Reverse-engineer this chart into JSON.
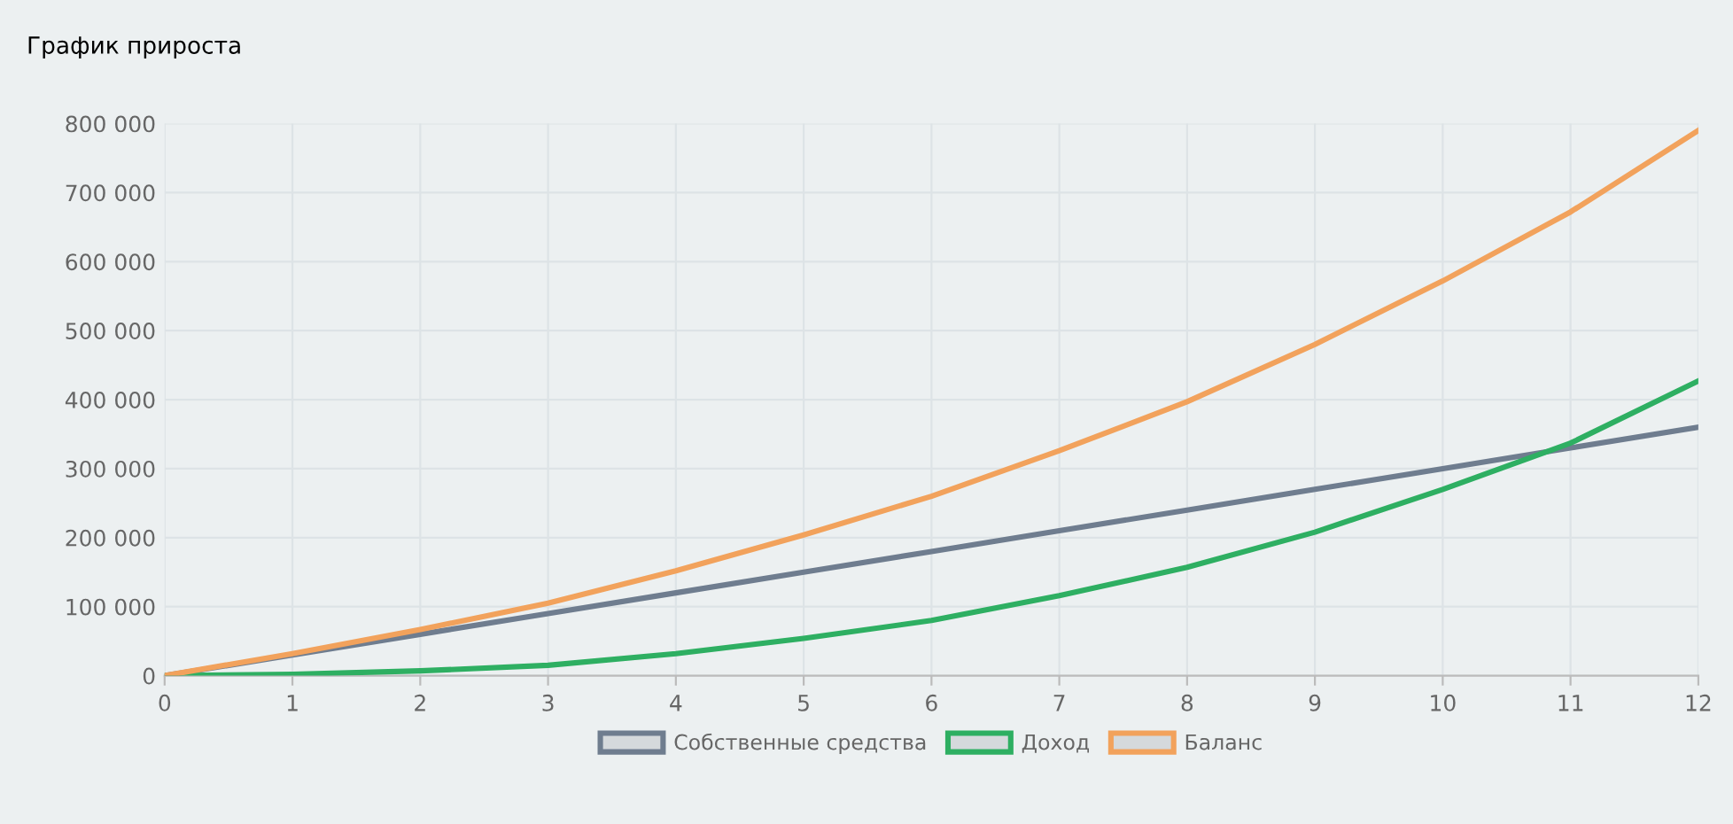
{
  "chart_data": {
    "type": "line",
    "title": "График прироста",
    "x": [
      0,
      1,
      2,
      3,
      4,
      5,
      6,
      7,
      8,
      9,
      10,
      11,
      12
    ],
    "series": [
      {
        "name": "Собственные средства",
        "color": "#6f7d8f",
        "values": [
          0,
          30000,
          60000,
          90000,
          120000,
          150000,
          180000,
          210000,
          240000,
          270000,
          300000,
          330000,
          360000
        ]
      },
      {
        "name": "Доход",
        "color": "#2eaf62",
        "values": [
          0,
          2000,
          7000,
          15000,
          32000,
          54000,
          80000,
          116000,
          157000,
          208000,
          270000,
          337000,
          427000
        ]
      },
      {
        "name": "Баланс",
        "color": "#f2a25c",
        "values": [
          0,
          32000,
          67000,
          105000,
          152000,
          204000,
          260000,
          326000,
          397000,
          480000,
          572000,
          672000,
          790000
        ]
      }
    ],
    "xlim": [
      0,
      12
    ],
    "xticks": [
      0,
      1,
      2,
      3,
      4,
      5,
      6,
      7,
      8,
      9,
      10,
      11,
      12
    ],
    "ylim": [
      0,
      800000
    ],
    "yticks": [
      {
        "value": 0,
        "label": "0"
      },
      {
        "value": 100000,
        "label": "100 000"
      },
      {
        "value": 200000,
        "label": "200 000"
      },
      {
        "value": 300000,
        "label": "300 000"
      },
      {
        "value": 400000,
        "label": "400 000"
      },
      {
        "value": 500000,
        "label": "500 000"
      },
      {
        "value": 600000,
        "label": "600 000"
      },
      {
        "value": 700000,
        "label": "700 000"
      },
      {
        "value": 800000,
        "label": "800 000"
      }
    ],
    "grid": true,
    "legend": "bottom",
    "marker": "none",
    "line_style": "solid"
  }
}
